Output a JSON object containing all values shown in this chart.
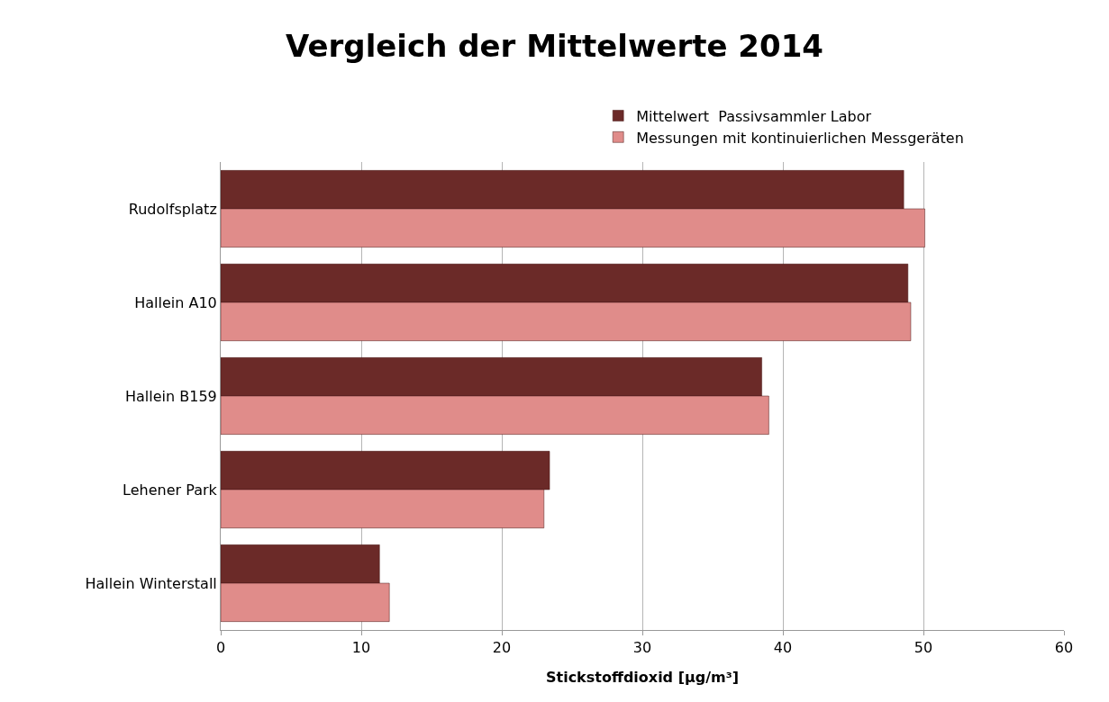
{
  "chart_data": {
    "type": "bar",
    "orientation": "horizontal",
    "title": "Vergleich der Mittelwerte 2014",
    "xlabel": "Stickstoffdioxid [µg/m³]",
    "categories": [
      "Rudolfsplatz",
      "Hallein A10",
      "Hallein B159",
      "Lehener Park",
      "Hallein Winterstall"
    ],
    "series": [
      {
        "name": "Mittelwert  Passivsammler Labor",
        "color": "#6b2a28",
        "values": [
          48.6,
          48.9,
          38.5,
          23.4,
          11.3
        ]
      },
      {
        "name": "Messungen mit kontinuierlichen Messgeräten",
        "color": "#e08c8a",
        "values": [
          50.1,
          49.1,
          39.0,
          23.0,
          12.0
        ]
      }
    ],
    "xlim": [
      0,
      60
    ],
    "xticks": [
      0,
      10,
      20,
      30,
      40,
      50,
      60
    ],
    "grid": "x",
    "legend": "top right"
  }
}
